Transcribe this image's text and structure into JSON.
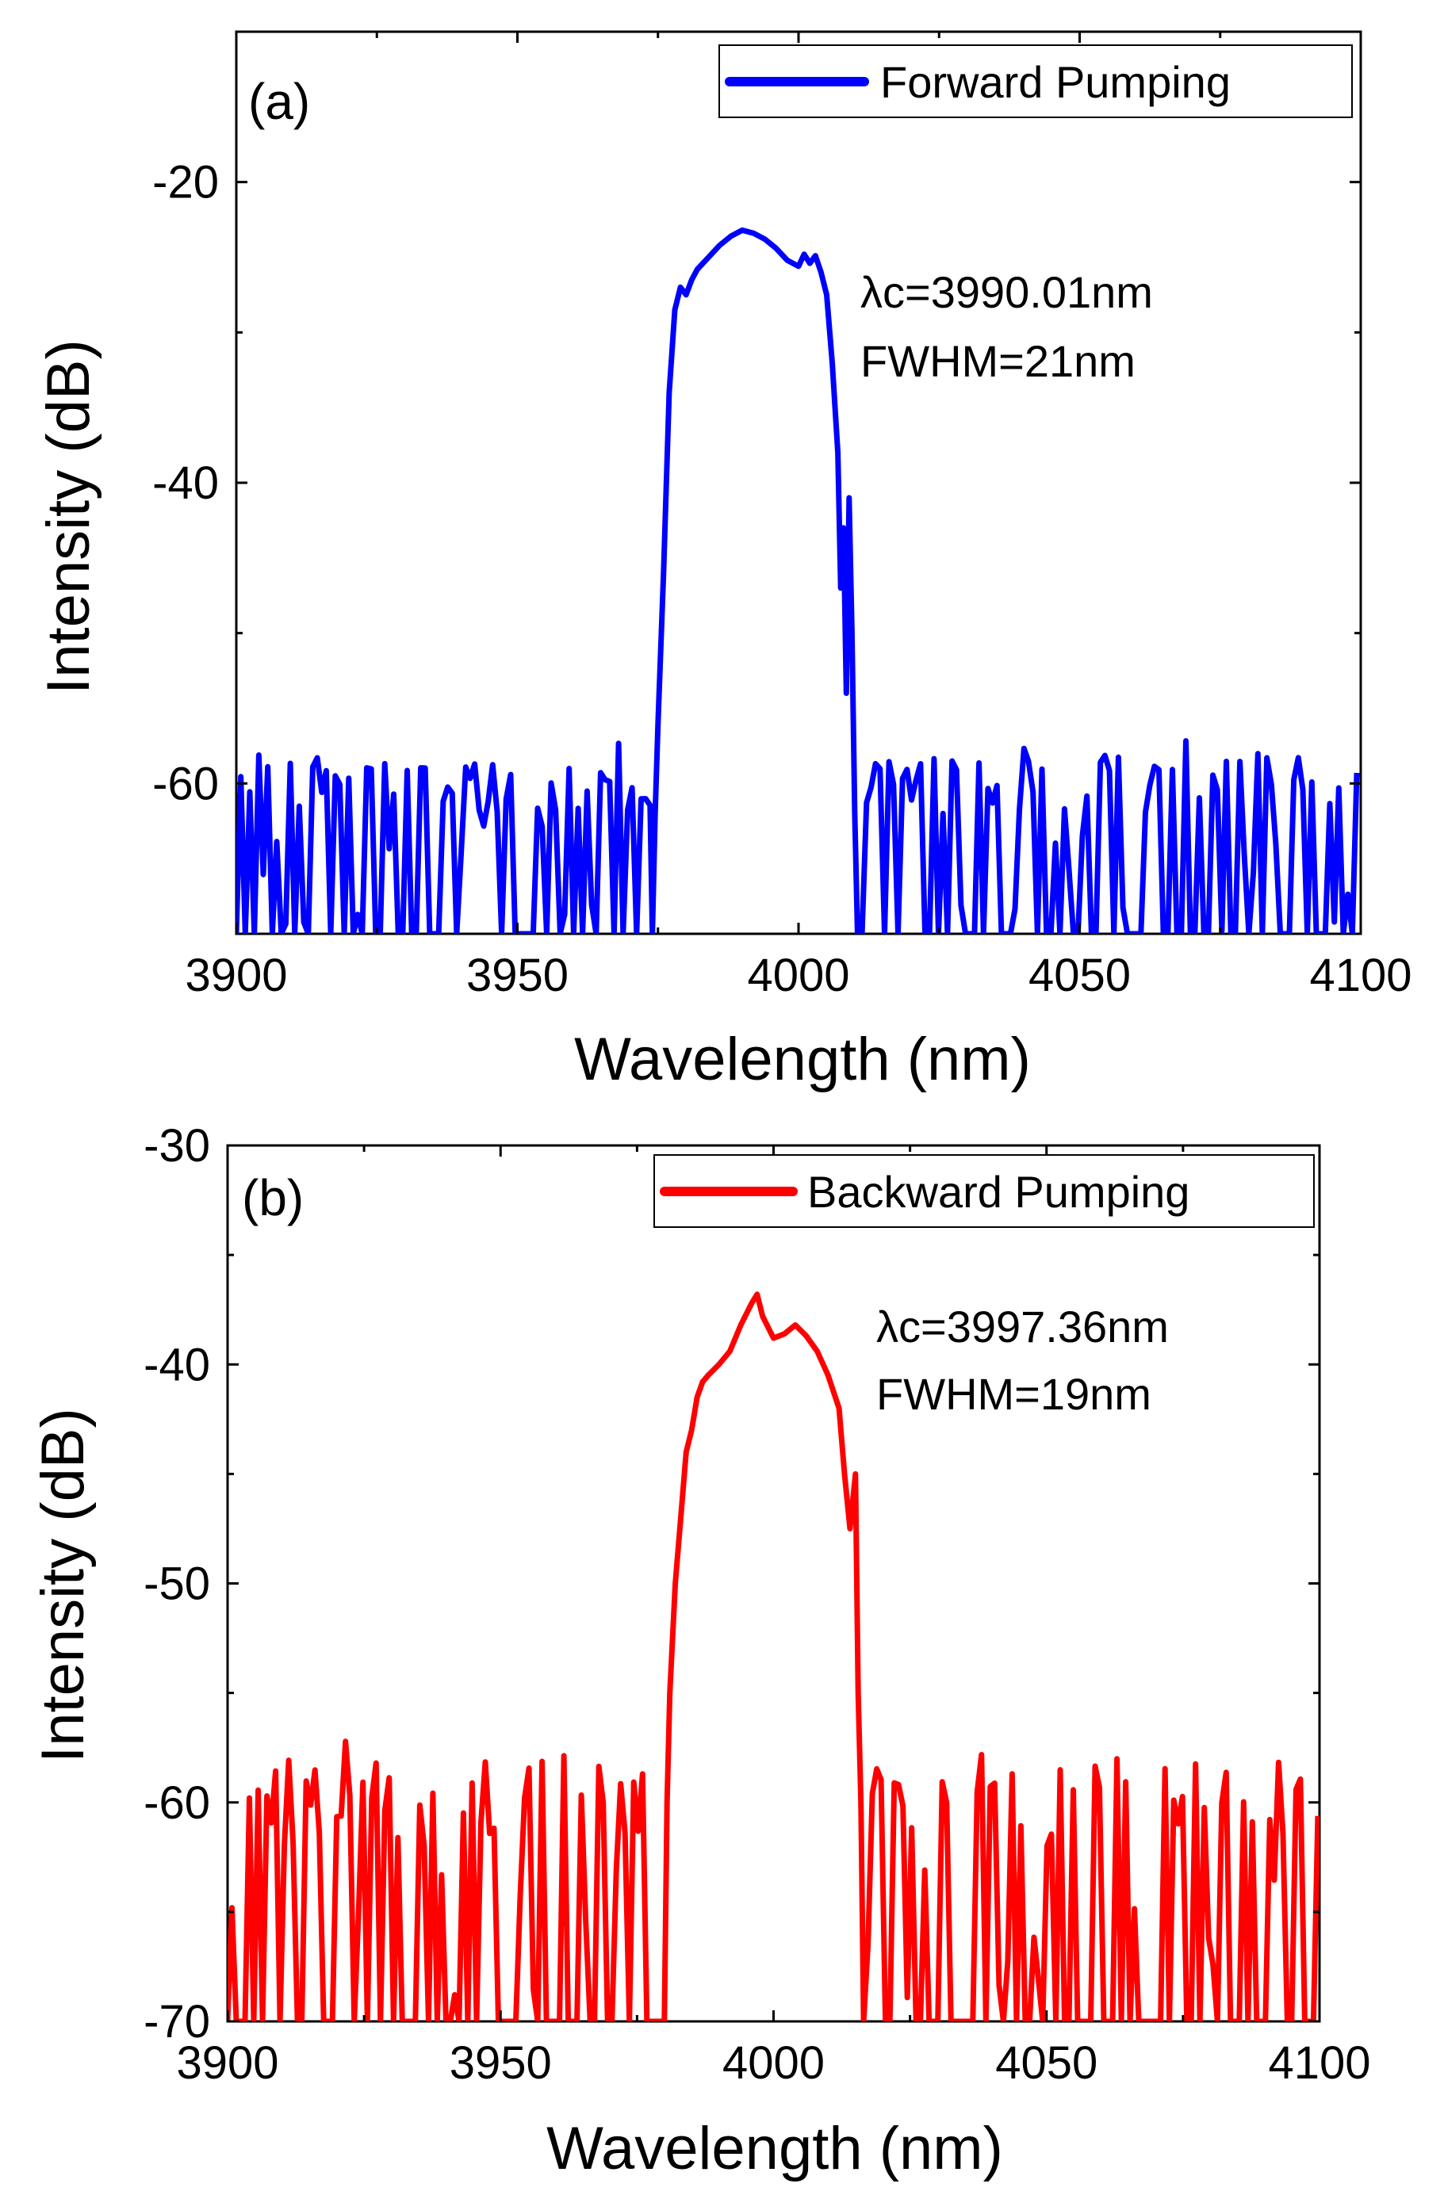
{
  "chart_data": [
    {
      "type": "line",
      "panel_label": "(a)",
      "legend": "Forward Pumping",
      "legend_position": "top-right",
      "color": "#0000ff",
      "xlabel": "Wavelength (nm)",
      "ylabel": "Intensity (dB)",
      "xlim": [
        3900,
        4100
      ],
      "ylim": [
        -70,
        -10
      ],
      "xticks": [
        3900,
        3950,
        4000,
        4050,
        4100
      ],
      "yticks": [
        -20,
        -40,
        -60
      ],
      "annotation": [
        "λc=3990.01nm",
        "FWHM=21nm"
      ],
      "noise_floor": [
        -70,
        -58
      ],
      "peak": [
        [
          3974,
          -70
        ],
        [
          3974.5,
          -62
        ],
        [
          3975,
          -56
        ],
        [
          3976,
          -46
        ],
        [
          3977,
          -34
        ],
        [
          3978,
          -28.5
        ],
        [
          3979,
          -27
        ],
        [
          3980,
          -27.5
        ],
        [
          3981,
          -26.5
        ],
        [
          3982,
          -25.8
        ],
        [
          3984,
          -25
        ],
        [
          3986,
          -24.2
        ],
        [
          3988,
          -23.6
        ],
        [
          3990,
          -23.2
        ],
        [
          3992,
          -23.4
        ],
        [
          3994,
          -23.8
        ],
        [
          3996,
          -24.4
        ],
        [
          3998,
          -25.2
        ],
        [
          4000,
          -25.6
        ],
        [
          4001,
          -24.8
        ],
        [
          4002,
          -25.4
        ],
        [
          4003,
          -24.9
        ],
        [
          4004,
          -26
        ],
        [
          4005,
          -27.5
        ],
        [
          4006,
          -32
        ],
        [
          4007,
          -38
        ],
        [
          4007.5,
          -47
        ],
        [
          4008,
          -43
        ],
        [
          4008.5,
          -54
        ],
        [
          4009,
          -41
        ],
        [
          4009.5,
          -50
        ],
        [
          4010,
          -62
        ],
        [
          4010.5,
          -70
        ]
      ]
    },
    {
      "type": "line",
      "panel_label": "(b)",
      "legend": "Backward Pumping",
      "legend_position": "top-right",
      "color": "#ff0000",
      "xlabel": "Wavelength (nm)",
      "ylabel": "Intensity (dB)",
      "xlim": [
        3900,
        4100
      ],
      "ylim": [
        -70,
        -30
      ],
      "xticks": [
        3900,
        3950,
        4000,
        4050,
        4100
      ],
      "yticks": [
        -30,
        -40,
        -50,
        -60,
        -70
      ],
      "annotation": [
        "λc=3997.36nm",
        "FWHM=19nm"
      ],
      "noise_floor": [
        -70,
        -58
      ],
      "peak": [
        [
          3980,
          -70
        ],
        [
          3980.5,
          -60
        ],
        [
          3981,
          -55
        ],
        [
          3982,
          -50
        ],
        [
          3983,
          -47
        ],
        [
          3984,
          -44
        ],
        [
          3985,
          -43
        ],
        [
          3986,
          -41.5
        ],
        [
          3987,
          -40.8
        ],
        [
          3988,
          -40.5
        ],
        [
          3990,
          -40
        ],
        [
          3992,
          -39.4
        ],
        [
          3994,
          -38.2
        ],
        [
          3996,
          -37.2
        ],
        [
          3997,
          -36.8
        ],
        [
          3998,
          -37.8
        ],
        [
          4000,
          -38.8
        ],
        [
          4002,
          -38.6
        ],
        [
          4004,
          -38.2
        ],
        [
          4006,
          -38.7
        ],
        [
          4008,
          -39.4
        ],
        [
          4010,
          -40.5
        ],
        [
          4012,
          -42
        ],
        [
          4013,
          -45
        ],
        [
          4014,
          -47.5
        ],
        [
          4015,
          -45
        ],
        [
          4015.5,
          -55
        ],
        [
          4016,
          -60
        ],
        [
          4016.5,
          -70
        ]
      ]
    }
  ]
}
